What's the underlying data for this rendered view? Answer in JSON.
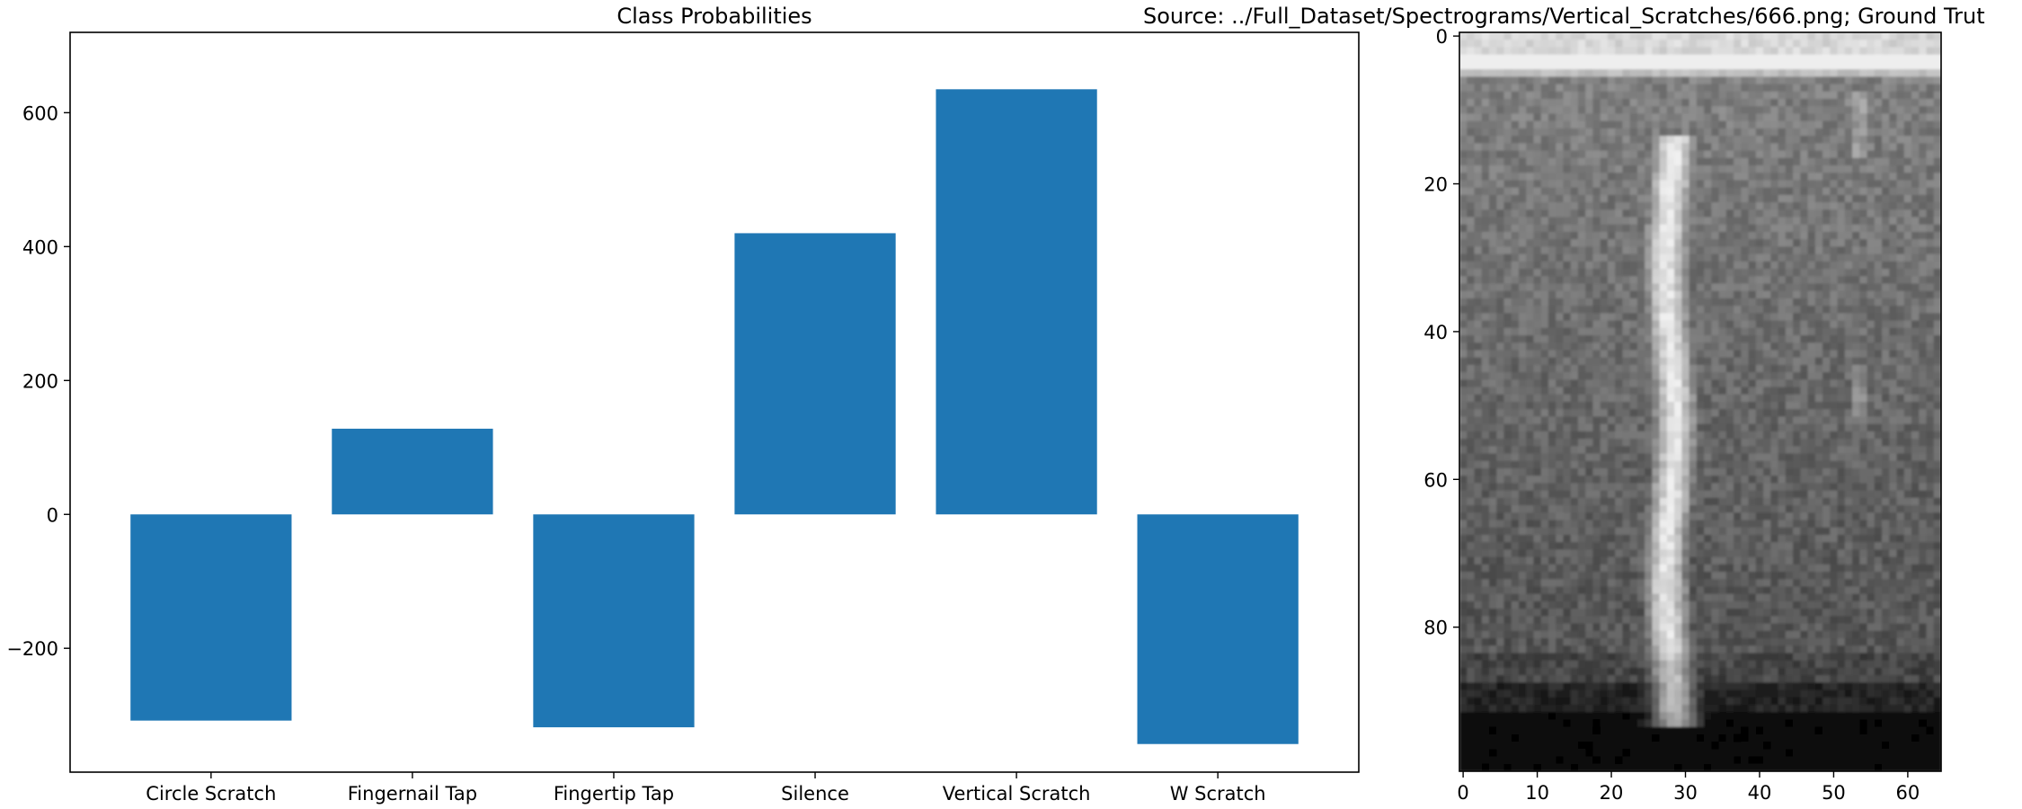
{
  "chart_data": [
    {
      "type": "bar",
      "title": "Class Probabilities",
      "categories": [
        "Circle Scratch",
        "Fingernail Tap",
        "Fingertip Tap",
        "Silence",
        "Vertical Scratch",
        "W Scratch"
      ],
      "values": [
        -308,
        128,
        -318,
        420,
        635,
        -343
      ],
      "ylim": [
        -385,
        720
      ],
      "yticks": [
        -200,
        0,
        200,
        400,
        600
      ],
      "bar_color": "#1f77b4",
      "grid": false
    },
    {
      "type": "heatmap",
      "title": "Source: ../Full_Dataset/Spectrograms/Vertical_Scratches/666.png; Ground Trut",
      "colormap": "gray",
      "x_range": [
        -0.5,
        64.5
      ],
      "y_range": [
        -0.5,
        99.5
      ],
      "xticks": [
        0,
        10,
        20,
        30,
        40,
        50,
        60
      ],
      "yticks": [
        0,
        20,
        40,
        60,
        80
      ],
      "grid": false
    }
  ]
}
